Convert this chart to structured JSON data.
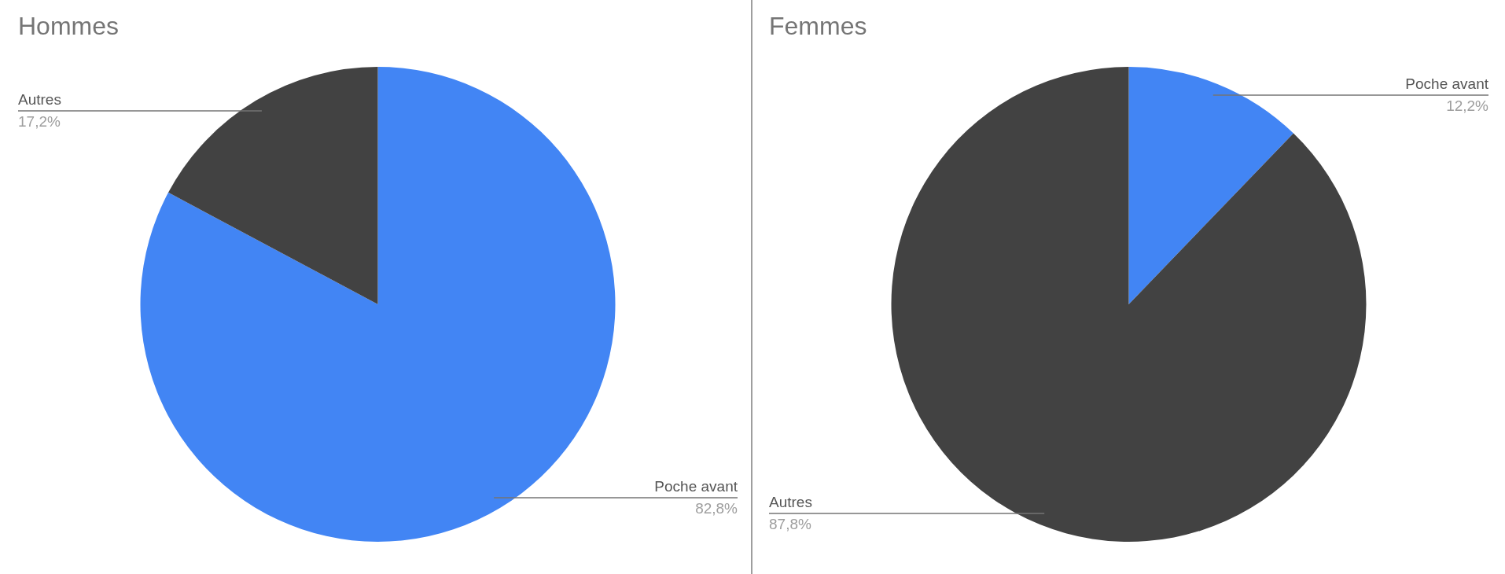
{
  "chart_data": [
    {
      "type": "pie",
      "title": "Hommes",
      "categories": [
        "Poche avant",
        "Autres"
      ],
      "values": [
        82.8,
        17.2
      ],
      "colors": [
        "#4285f4",
        "#424242"
      ],
      "value_labels": [
        "82,8%",
        "17,2%"
      ]
    },
    {
      "type": "pie",
      "title": "Femmes",
      "categories": [
        "Poche avant",
        "Autres"
      ],
      "values": [
        12.2,
        87.8
      ],
      "colors": [
        "#4285f4",
        "#424242"
      ],
      "value_labels": [
        "12,2%",
        "87,8%"
      ]
    }
  ]
}
